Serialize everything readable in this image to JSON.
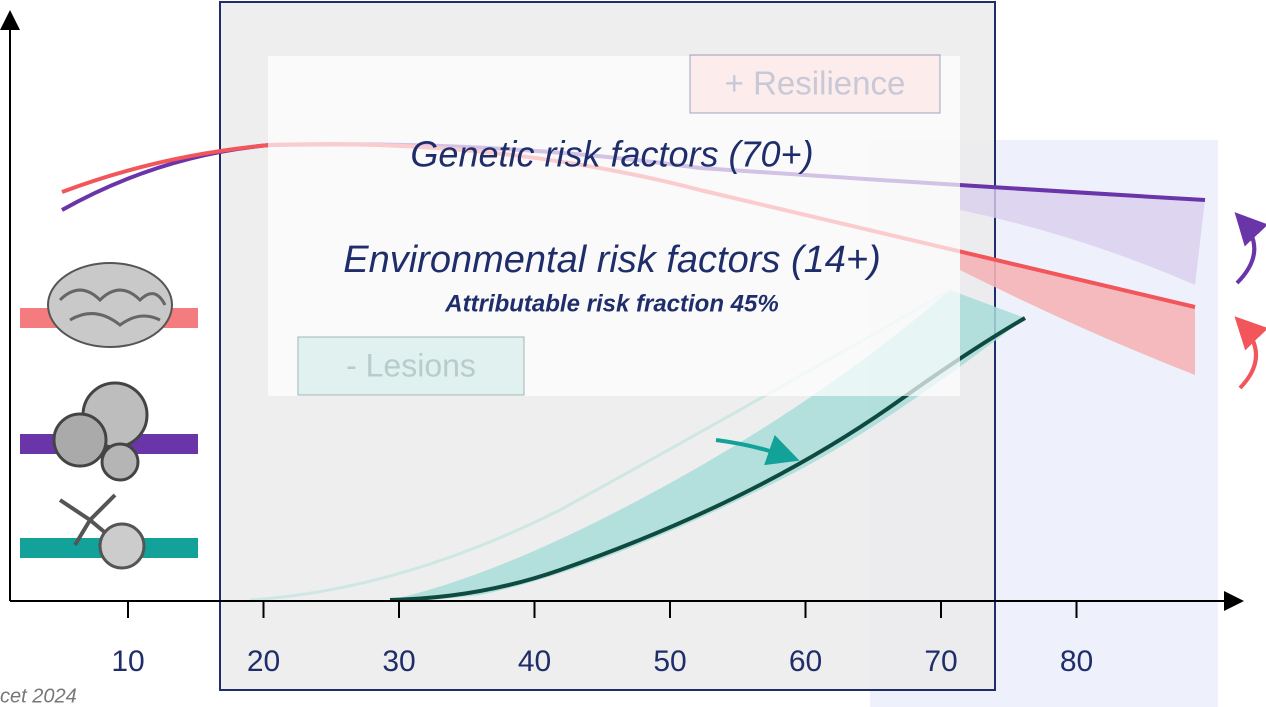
{
  "axis": {
    "ticks": [
      "10",
      "20",
      "30",
      "40",
      "50",
      "60",
      "70",
      "80"
    ]
  },
  "labels": {
    "resilience": "+ Resilience",
    "genetic": "Genetic risk factors (70+)",
    "environmental": "Environmental risk factors (14+)",
    "attributable": "Attributable risk fraction 45%",
    "lesions": "- Lesions"
  },
  "source": "cet 2024"
}
